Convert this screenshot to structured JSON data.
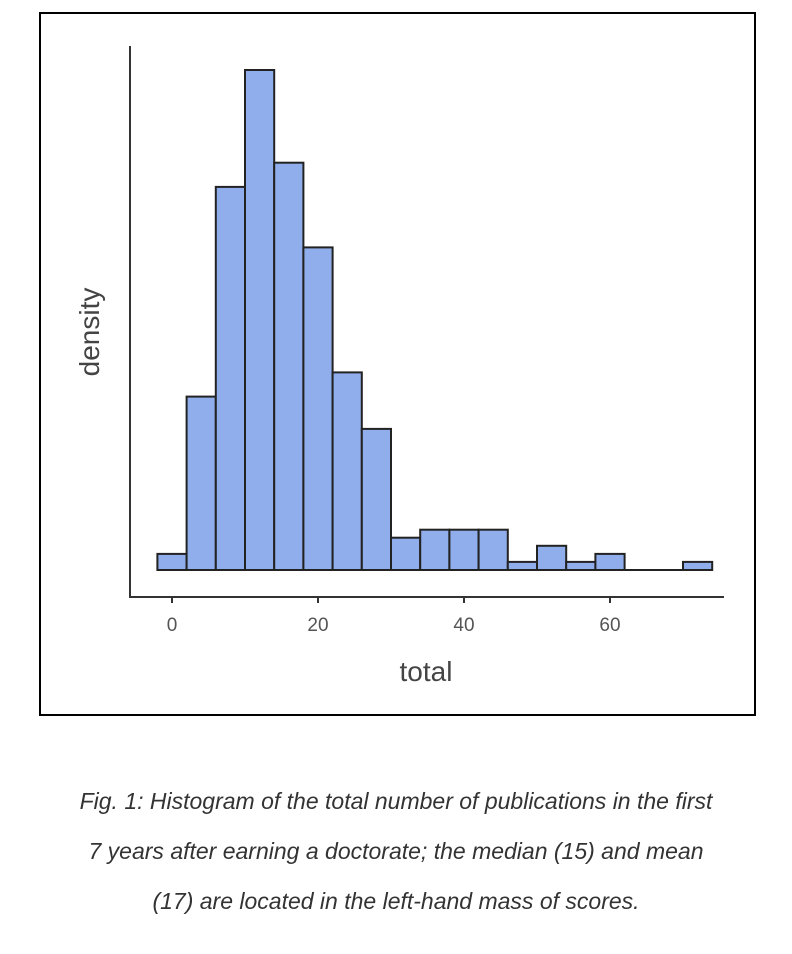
{
  "chart_data": {
    "type": "bar",
    "subtype": "histogram",
    "xlabel": "total",
    "ylabel": "density",
    "xlim": [
      -4,
      76
    ],
    "ylim": [
      0,
      0.065
    ],
    "x_ticks": [
      0,
      20,
      40,
      60
    ],
    "y_tick_labels": false,
    "grid": false,
    "bin_width": 4,
    "bins": [
      {
        "start": -2,
        "end": 2,
        "density": 0.002
      },
      {
        "start": 2,
        "end": 6,
        "density": 0.0215
      },
      {
        "start": 6,
        "end": 10,
        "density": 0.0475
      },
      {
        "start": 10,
        "end": 14,
        "density": 0.062
      },
      {
        "start": 14,
        "end": 18,
        "density": 0.0505
      },
      {
        "start": 18,
        "end": 22,
        "density": 0.04
      },
      {
        "start": 22,
        "end": 26,
        "density": 0.0245
      },
      {
        "start": 26,
        "end": 30,
        "density": 0.0175
      },
      {
        "start": 30,
        "end": 34,
        "density": 0.004
      },
      {
        "start": 34,
        "end": 38,
        "density": 0.005
      },
      {
        "start": 38,
        "end": 42,
        "density": 0.005
      },
      {
        "start": 42,
        "end": 46,
        "density": 0.005
      },
      {
        "start": 46,
        "end": 50,
        "density": 0.001
      },
      {
        "start": 50,
        "end": 54,
        "density": 0.003
      },
      {
        "start": 54,
        "end": 58,
        "density": 0.001
      },
      {
        "start": 58,
        "end": 62,
        "density": 0.002
      },
      {
        "start": 62,
        "end": 66,
        "density": 0
      },
      {
        "start": 66,
        "end": 70,
        "density": 0
      },
      {
        "start": 70,
        "end": 74,
        "density": 0.001
      }
    ],
    "bar_color": "#8faeeb",
    "bar_edge_color": "#222222",
    "axis_color": "#333333"
  },
  "caption": {
    "lines": [
      "Fig. 1: Histogram of the total number of publications in the first",
      "7 years after earning a doctorate; the median (15) and mean",
      "(17) are located in the left-hand mass of scores."
    ]
  }
}
